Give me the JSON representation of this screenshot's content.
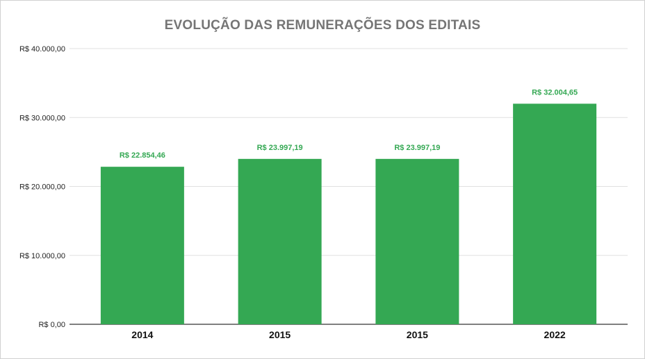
{
  "chart_data": {
    "type": "bar",
    "title": "EVOLUÇÃO DAS REMUNERAÇÕES DOS EDITAIS",
    "categories": [
      "2014",
      "2015",
      "2015",
      "2022"
    ],
    "values": [
      22854.46,
      23997.19,
      23997.19,
      32004.65
    ],
    "data_labels": [
      "R$ 22.854,46",
      "R$ 23.997,19",
      "R$ 23.997,19",
      "R$ 32.004,65"
    ],
    "y_ticks": [
      0,
      10000,
      20000,
      30000,
      40000
    ],
    "y_tick_labels": [
      "R$ 0,00",
      "R$ 10.000,00",
      "R$ 20.000,00",
      "R$ 30.000,00",
      "R$ 40.000,00"
    ],
    "ylim": [
      0,
      40000
    ],
    "xlabel": "",
    "ylabel": "",
    "grid": true,
    "legend": "none",
    "colors": {
      "bar": "#34a853",
      "data_label": "#34a853",
      "title": "#757575",
      "grid": "#e0e0e0",
      "axis": "#333333"
    }
  }
}
